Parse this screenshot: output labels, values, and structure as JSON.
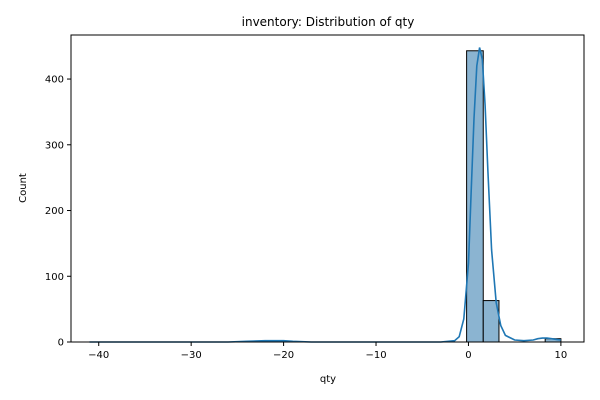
{
  "chart_data": {
    "type": "bar",
    "title": "inventory: Distribution of qty",
    "xlabel": "qty",
    "ylabel": "Count",
    "xlim": [
      -43,
      12.5
    ],
    "ylim": [
      0,
      467
    ],
    "x_ticks": [
      -40,
      -30,
      -20,
      -10,
      0,
      10
    ],
    "x_tick_labels": [
      "−40",
      "−30",
      "−20",
      "−10",
      "0",
      "10"
    ],
    "y_ticks": [
      0,
      100,
      200,
      300,
      400
    ],
    "y_tick_labels": [
      "0",
      "100",
      "200",
      "300",
      "400"
    ],
    "bins": [
      {
        "x0": -0.2,
        "x1": 1.6,
        "count": 443
      },
      {
        "x0": 1.6,
        "x1": 3.3,
        "count": 63
      },
      {
        "x0": 8.3,
        "x1": 10.0,
        "count": 5
      }
    ],
    "kde": {
      "x": [
        -41,
        -35,
        -30,
        -26,
        -24,
        -22,
        -20,
        -19,
        -17,
        -14,
        -10,
        -6,
        -3,
        -1.5,
        -1.0,
        -0.5,
        0,
        0.3,
        0.6,
        0.9,
        1.2,
        1.5,
        1.8,
        2.1,
        2.5,
        3.0,
        3.5,
        4.0,
        5,
        6,
        7,
        7.5,
        8,
        8.5,
        9,
        9.5,
        10
      ],
      "y": [
        0,
        0,
        0,
        0,
        1,
        2,
        2,
        1,
        0,
        0,
        0,
        0,
        0,
        2,
        8,
        35,
        120,
        230,
        340,
        420,
        448,
        430,
        360,
        260,
        140,
        60,
        25,
        10,
        3,
        2,
        3,
        5,
        6,
        6,
        5,
        4,
        3
      ]
    },
    "colors": {
      "bar_fill": "#8bb4d1",
      "bar_edge": "#000000",
      "kde_line": "#1f77b4"
    },
    "grid": false,
    "legend": "none"
  }
}
